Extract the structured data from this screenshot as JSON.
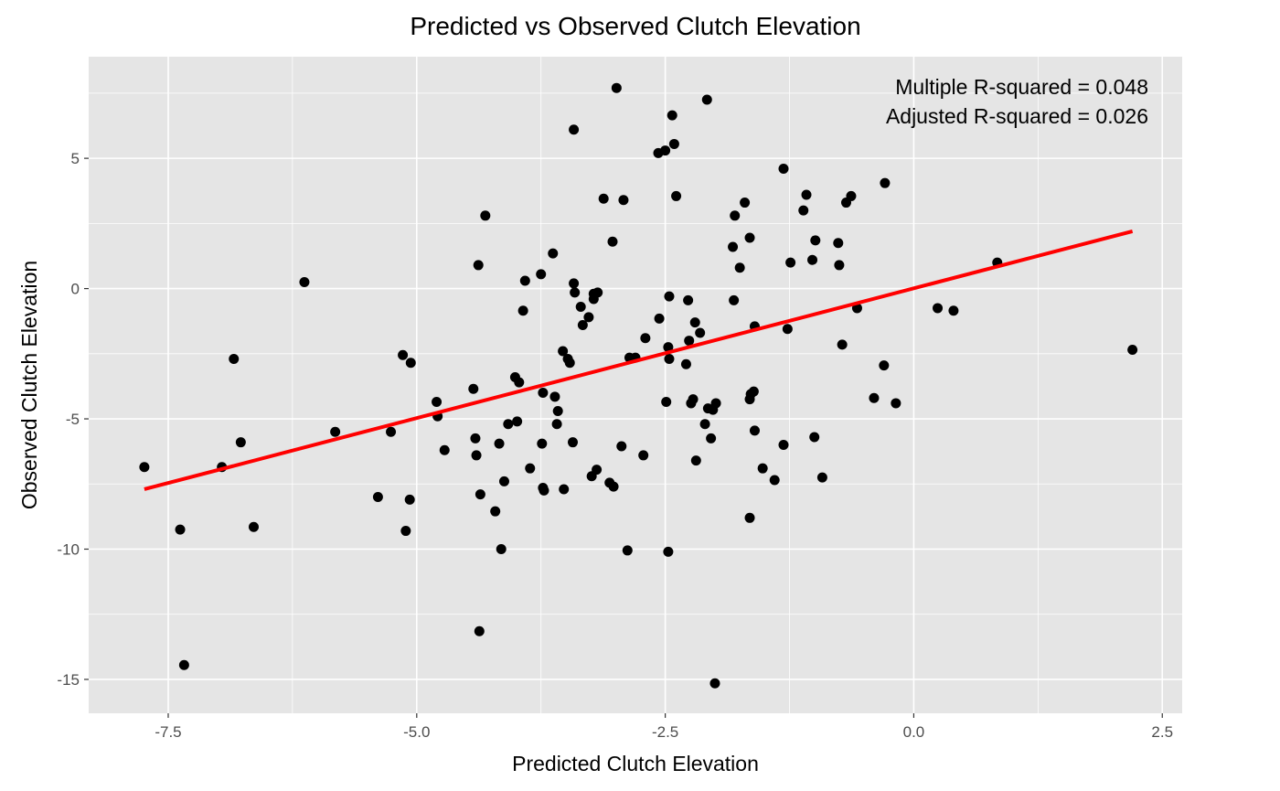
{
  "chart_data": {
    "type": "scatter",
    "title": "Predicted vs Observed Clutch Elevation",
    "xlabel": "Predicted Clutch Elevation",
    "ylabel": "Observed Clutch Elevation",
    "xlim": [
      -8.3,
      2.7
    ],
    "ylim": [
      -16.3,
      8.9
    ],
    "x_ticks": [
      -7.5,
      -5.0,
      -2.5,
      0.0,
      2.5
    ],
    "x_tick_labels": [
      "-7.5",
      "-5.0",
      "-2.5",
      "0.0",
      "2.5"
    ],
    "y_ticks": [
      -15,
      -10,
      -5,
      0,
      5
    ],
    "y_tick_labels": [
      "-15",
      "-10",
      "-5",
      "0",
      "5"
    ],
    "grid": true,
    "background": "#e5e5e5",
    "point_color": "#000000",
    "fit_line": {
      "color": "#ff0000",
      "x": [
        -7.74,
        2.2
      ],
      "y": [
        -7.7,
        2.2
      ]
    },
    "annotations": [
      "Multiple R-squared = 0.048",
      "Adjusted R-squared = 0.026"
    ],
    "annotation_position": "top-right",
    "points": [
      [
        -7.74,
        -6.85
      ],
      [
        -7.38,
        -9.25
      ],
      [
        -7.34,
        -14.45
      ],
      [
        -6.96,
        -6.85
      ],
      [
        -6.84,
        -2.7
      ],
      [
        -6.77,
        -5.9
      ],
      [
        -6.64,
        -9.15
      ],
      [
        -6.13,
        0.25
      ],
      [
        -5.82,
        -5.5
      ],
      [
        -5.39,
        -8.0
      ],
      [
        -5.26,
        -5.5
      ],
      [
        -5.14,
        -2.55
      ],
      [
        -5.11,
        -9.3
      ],
      [
        -5.07,
        -8.1
      ],
      [
        -5.06,
        -2.85
      ],
      [
        -4.8,
        -4.35
      ],
      [
        -4.79,
        -4.9
      ],
      [
        -4.72,
        -6.2
      ],
      [
        -4.43,
        -3.85
      ],
      [
        -4.41,
        -5.75
      ],
      [
        -4.4,
        -6.4
      ],
      [
        -4.38,
        0.9
      ],
      [
        -4.37,
        -13.15
      ],
      [
        -4.36,
        -7.9
      ],
      [
        -4.31,
        2.8
      ],
      [
        -4.21,
        -8.55
      ],
      [
        -4.17,
        -5.95
      ],
      [
        -4.15,
        -10.0
      ],
      [
        -4.12,
        -7.4
      ],
      [
        -4.08,
        -5.2
      ],
      [
        -4.01,
        -3.4
      ],
      [
        -3.99,
        -5.1
      ],
      [
        -3.97,
        -3.6
      ],
      [
        -3.93,
        -0.85
      ],
      [
        -3.91,
        0.3
      ],
      [
        -3.86,
        -6.9
      ],
      [
        -3.75,
        0.55
      ],
      [
        -3.74,
        -5.95
      ],
      [
        -3.73,
        -4.0
      ],
      [
        -3.73,
        -7.65
      ],
      [
        -3.72,
        -7.75
      ],
      [
        -3.63,
        1.35
      ],
      [
        -3.61,
        -4.15
      ],
      [
        -3.59,
        -5.2
      ],
      [
        -3.58,
        -4.7
      ],
      [
        -3.53,
        -2.4
      ],
      [
        -3.52,
        -7.7
      ],
      [
        -3.48,
        -2.7
      ],
      [
        -3.46,
        -2.85
      ],
      [
        -3.43,
        -5.9
      ],
      [
        -3.42,
        6.1
      ],
      [
        -3.42,
        0.2
      ],
      [
        -3.41,
        -0.15
      ],
      [
        -3.35,
        -0.7
      ],
      [
        -3.33,
        -1.4
      ],
      [
        -3.27,
        -1.1
      ],
      [
        -3.24,
        -7.2
      ],
      [
        -3.22,
        -0.4
      ],
      [
        -3.22,
        -0.2
      ],
      [
        -3.19,
        -6.95
      ],
      [
        -3.18,
        -0.15
      ],
      [
        -3.12,
        3.45
      ],
      [
        -3.06,
        -7.45
      ],
      [
        -3.03,
        1.8
      ],
      [
        -3.02,
        -7.6
      ],
      [
        -2.99,
        7.7
      ],
      [
        -2.94,
        -6.05
      ],
      [
        -2.92,
        3.4
      ],
      [
        -2.88,
        -10.05
      ],
      [
        -2.86,
        -2.65
      ],
      [
        -2.8,
        -2.65
      ],
      [
        -2.72,
        -6.4
      ],
      [
        -2.7,
        -1.9
      ],
      [
        -2.57,
        5.2
      ],
      [
        -2.56,
        -1.15
      ],
      [
        -2.5,
        5.3
      ],
      [
        -2.49,
        -4.35
      ],
      [
        -2.47,
        -2.25
      ],
      [
        -2.47,
        -10.1
      ],
      [
        -2.46,
        -0.3
      ],
      [
        -2.46,
        -2.7
      ],
      [
        -2.43,
        6.65
      ],
      [
        -2.41,
        5.55
      ],
      [
        -2.39,
        3.55
      ],
      [
        -2.29,
        -2.9
      ],
      [
        -2.27,
        -0.45
      ],
      [
        -2.26,
        -2.0
      ],
      [
        -2.24,
        -4.4
      ],
      [
        -2.22,
        -4.25
      ],
      [
        -2.2,
        -1.3
      ],
      [
        -2.19,
        -6.6
      ],
      [
        -2.15,
        -1.7
      ],
      [
        -2.1,
        -5.2
      ],
      [
        -2.08,
        7.25
      ],
      [
        -2.07,
        -4.6
      ],
      [
        -2.04,
        -5.75
      ],
      [
        -2.02,
        -4.65
      ],
      [
        -2.0,
        -15.15
      ],
      [
        -1.99,
        -4.4
      ],
      [
        -1.82,
        1.6
      ],
      [
        -1.81,
        -0.45
      ],
      [
        -1.8,
        2.8
      ],
      [
        -1.75,
        0.8
      ],
      [
        -1.7,
        3.3
      ],
      [
        -1.65,
        -8.8
      ],
      [
        -1.65,
        1.95
      ],
      [
        -1.65,
        -4.25
      ],
      [
        -1.64,
        -4.05
      ],
      [
        -1.61,
        -3.95
      ],
      [
        -1.6,
        -1.45
      ],
      [
        -1.6,
        -5.45
      ],
      [
        -1.52,
        -6.9
      ],
      [
        -1.4,
        -7.35
      ],
      [
        -1.31,
        4.6
      ],
      [
        -1.31,
        -6.0
      ],
      [
        -1.27,
        -1.55
      ],
      [
        -1.24,
        1.0
      ],
      [
        -1.11,
        3.0
      ],
      [
        -1.08,
        3.6
      ],
      [
        -1.02,
        1.1
      ],
      [
        -1.0,
        -5.7
      ],
      [
        -0.99,
        1.85
      ],
      [
        -0.92,
        -7.25
      ],
      [
        -0.76,
        1.75
      ],
      [
        -0.75,
        0.9
      ],
      [
        -0.72,
        -2.15
      ],
      [
        -0.68,
        3.3
      ],
      [
        -0.63,
        3.55
      ],
      [
        -0.57,
        -0.75
      ],
      [
        -0.4,
        -4.2
      ],
      [
        -0.3,
        -2.95
      ],
      [
        -0.29,
        4.05
      ],
      [
        -0.18,
        -4.4
      ],
      [
        0.24,
        -0.75
      ],
      [
        0.4,
        -0.85
      ],
      [
        0.84,
        1.0
      ],
      [
        2.2,
        -2.35
      ]
    ]
  }
}
